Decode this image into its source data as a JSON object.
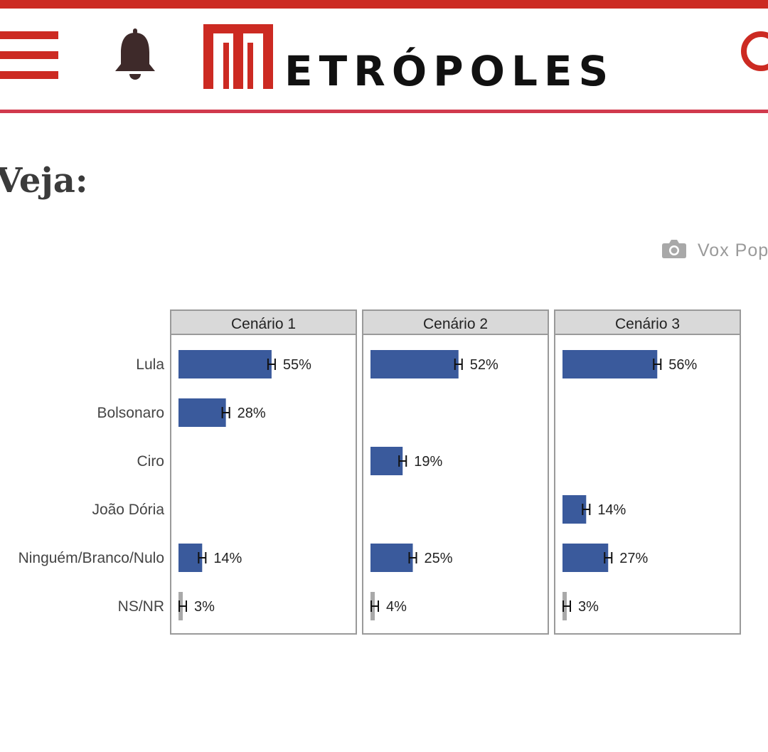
{
  "site": {
    "name": "METRÓPOLES",
    "name_rest": "ETRÓPOLES",
    "colors": {
      "brand_red": "#cc2a22",
      "rule_pink": "#d13a4d"
    },
    "icons": {
      "menu": "hamburger-menu-icon",
      "notifications": "bell-icon",
      "search": "search-icon"
    }
  },
  "article": {
    "heading": "Veja:",
    "image_credit": "Vox Pop",
    "credit_icon": "camera-icon"
  },
  "chart_data": {
    "type": "bar",
    "orientation": "horizontal",
    "facets": [
      "Cenário 1",
      "Cenário 2",
      "Cenário 3"
    ],
    "categories": [
      "Lula",
      "Bolsonaro",
      "Ciro",
      "João Dória",
      "Ninguém/Branco/Nulo",
      "NS/NR"
    ],
    "unit": "%",
    "error_bars": true,
    "grid": false,
    "colors": {
      "candidate": "#3a5a9c",
      "no_answer": "#a9a9a9",
      "panel_header": "#d9d9d9"
    },
    "panels": [
      {
        "title": "Cenário 1",
        "values": [
          55,
          28,
          null,
          null,
          14,
          3
        ],
        "labels": [
          "55%",
          "28%",
          "",
          "",
          "14%",
          "3%"
        ]
      },
      {
        "title": "Cenário 2",
        "values": [
          52,
          null,
          19,
          null,
          25,
          4
        ],
        "labels": [
          "52%",
          "",
          "19%",
          "",
          "25%",
          "4%"
        ]
      },
      {
        "title": "Cenário 3",
        "values": [
          56,
          null,
          null,
          14,
          27,
          3
        ],
        "labels": [
          "56%",
          "",
          "",
          "14%",
          "27%",
          "3%"
        ]
      }
    ]
  }
}
